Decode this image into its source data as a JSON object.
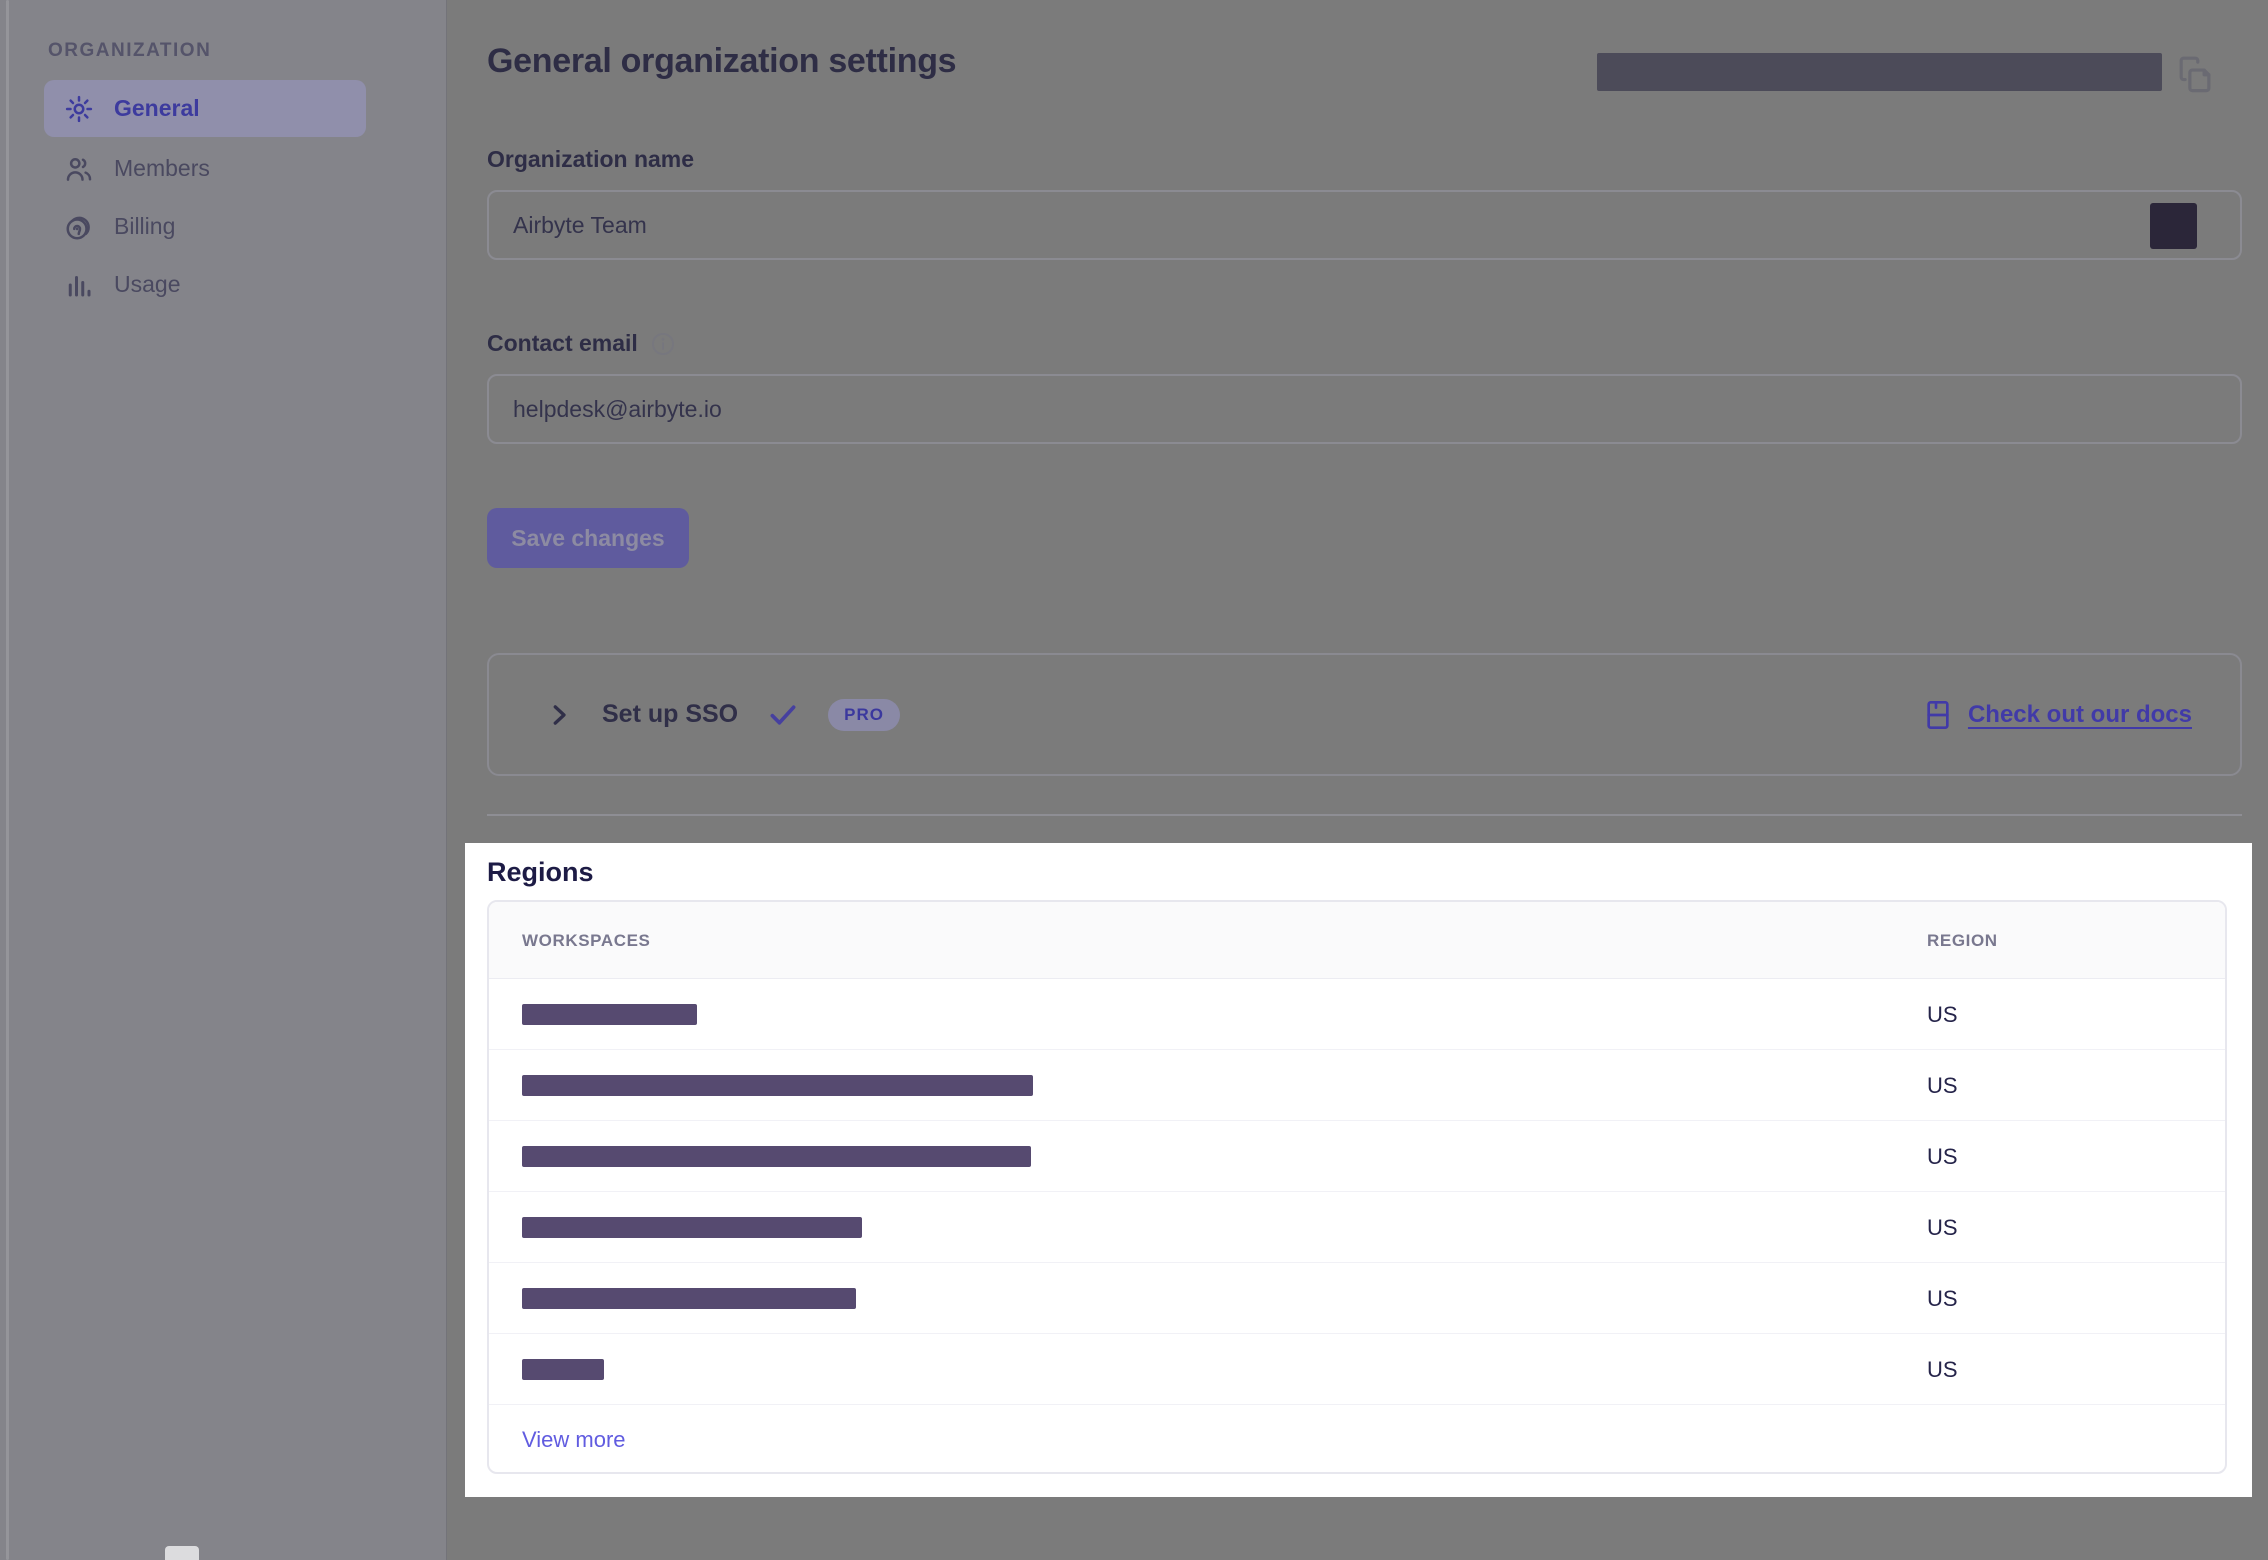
{
  "sidebar": {
    "section_label": "ORGANIZATION",
    "items": [
      {
        "label": "General",
        "icon": "gear-icon",
        "active": true
      },
      {
        "label": "Members",
        "icon": "members-icon",
        "active": false
      },
      {
        "label": "Billing",
        "icon": "billing-icon",
        "active": false
      },
      {
        "label": "Usage",
        "icon": "usage-icon",
        "active": false
      }
    ]
  },
  "header": {
    "title": "General organization settings",
    "value_redacted": true,
    "copy_icon": "copy-icon"
  },
  "form": {
    "org_name_label": "Organization name",
    "org_name_value": "Airbyte Team",
    "contact_email_label": "Contact email",
    "contact_email_value": "helpdesk@airbyte.io",
    "save_button_label": "Save changes"
  },
  "sso": {
    "title": "Set up SSO",
    "status_icon": "check-icon",
    "badge": "PRO",
    "docs_link_label": "Check out our docs",
    "docs_icon": "docs-icon"
  },
  "regions": {
    "title": "Regions",
    "columns": [
      "WORKSPACES",
      "REGION"
    ],
    "rows": [
      {
        "workspace_redacted_bar_width": 175,
        "region": "US"
      },
      {
        "workspace_redacted_bar_width": 511,
        "region": "US"
      },
      {
        "workspace_redacted_bar_width": 509,
        "region": "US"
      },
      {
        "workspace_redacted_bar_width": 340,
        "region": "US"
      },
      {
        "workspace_redacted_bar_width": 334,
        "region": "US"
      },
      {
        "workspace_redacted_bar_width": 82,
        "region": "US"
      }
    ],
    "view_more_label": "View more"
  },
  "colors": {
    "accent_purple": "#615EDC",
    "link_purple": "#615CE0",
    "redaction_bar_purple": "#564A70",
    "redaction_dark": "#2B2639",
    "dim_overlay_gray": "#7B7B7B",
    "spotlight_background": "#FFFFFF",
    "heading_navy": "#1D1B45"
  }
}
